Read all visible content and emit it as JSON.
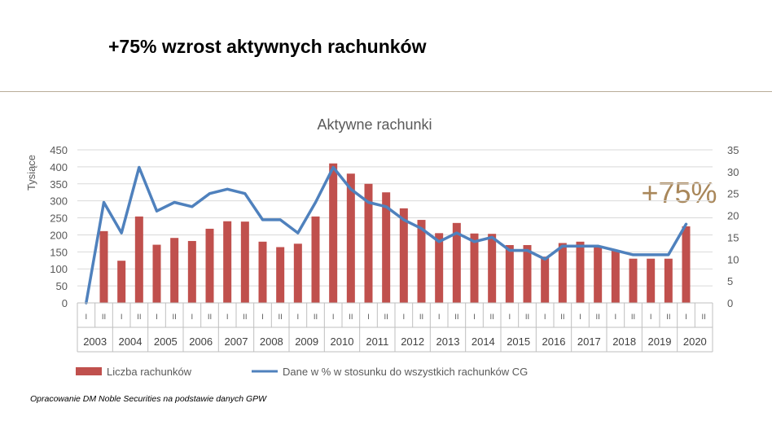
{
  "slide": {
    "title": "+75% wzrost aktywnych rachunków",
    "footnote": "Opracowanie DM Noble Securities na podstawie danych GPW"
  },
  "chart_data": {
    "type": "bar",
    "title": "Aktywne rachunki",
    "ylabel": "Tysiące",
    "ylim": [
      0,
      450
    ],
    "y2lim": [
      0,
      35
    ],
    "yticks": [
      0,
      50,
      100,
      150,
      200,
      250,
      300,
      350,
      400,
      450
    ],
    "y2ticks": [
      0,
      5,
      10,
      15,
      20,
      25,
      30,
      35
    ],
    "grid": true,
    "legend_position": "bottom",
    "years": [
      "2003",
      "2004",
      "2005",
      "2006",
      "2007",
      "2008",
      "2009",
      "2010",
      "2011",
      "2012",
      "2013",
      "2014",
      "2015",
      "2016",
      "2017",
      "2018",
      "2019",
      "2020"
    ],
    "halves": [
      "I",
      "II"
    ],
    "categories": [
      "2003 I",
      "2003 II",
      "2004 I",
      "2004 II",
      "2005 I",
      "2005 II",
      "2006 I",
      "2006 II",
      "2007 I",
      "2007 II",
      "2008 I",
      "2008 II",
      "2009 I",
      "2009 II",
      "2010 I",
      "2010 II",
      "2011 I",
      "2011 II",
      "2012 I",
      "2012 II",
      "2013 I",
      "2013 II",
      "2014 I",
      "2014 II",
      "2015 I",
      "2015 II",
      "2016 I",
      "2016 II",
      "2017 I",
      "2017 II",
      "2018 I",
      "2018 II",
      "2019 I",
      "2019 II",
      "2020 I",
      "2020 II"
    ],
    "series": [
      {
        "name": "Liczba rachunków",
        "type": "bar",
        "axis": "left",
        "color": "#c0504d",
        "values": [
          null,
          211,
          124,
          254,
          171,
          191,
          182,
          218,
          240,
          239,
          180,
          164,
          174,
          254,
          410,
          380,
          350,
          325,
          278,
          244,
          205,
          235,
          204,
          203,
          170,
          170,
          136,
          176,
          180,
          168,
          155,
          130,
          130,
          130,
          225,
          null
        ]
      },
      {
        "name": "Dane w % w stosunku do wszystkich rachunków CG",
        "type": "line",
        "axis": "right",
        "color": "#4f81bd",
        "values": [
          0,
          23,
          16,
          31,
          21,
          23,
          22,
          25,
          26,
          25,
          19,
          19,
          16,
          23,
          31,
          26,
          23,
          22,
          19,
          17,
          14,
          16,
          14,
          15,
          12,
          12,
          10,
          13,
          13,
          13,
          12,
          11,
          11,
          11,
          18,
          null
        ]
      }
    ],
    "annotations": [
      {
        "text": "+75%",
        "color": "#a9875a"
      }
    ]
  }
}
